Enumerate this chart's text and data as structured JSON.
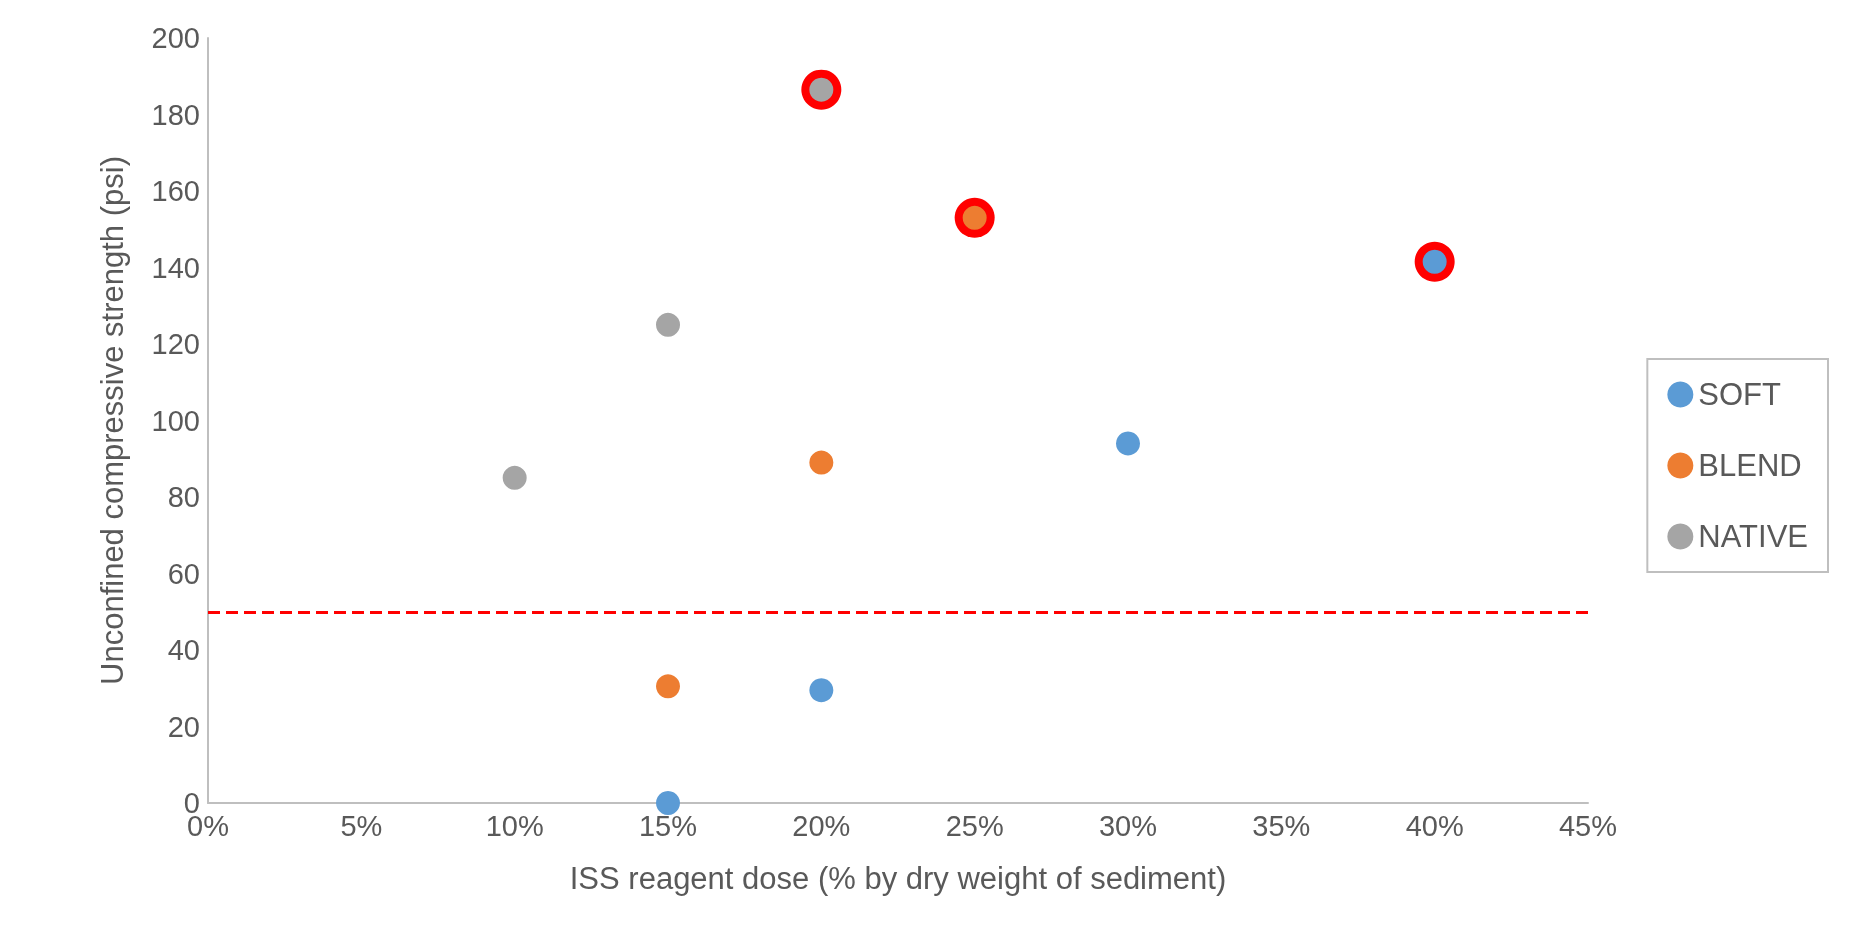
{
  "chart_data": {
    "type": "scatter",
    "xlabel": "ISS reagent dose (% by dry weight of sediment)",
    "ylabel": "Unconfined compressive strength (psi)",
    "xlim": [
      0,
      45
    ],
    "xticks": [
      {
        "value": 0,
        "label": "0%"
      },
      {
        "value": 5,
        "label": "5%"
      },
      {
        "value": 10,
        "label": "10%"
      },
      {
        "value": 15,
        "label": "15%"
      },
      {
        "value": 20,
        "label": "20%"
      },
      {
        "value": 25,
        "label": "25%"
      },
      {
        "value": 30,
        "label": "30%"
      },
      {
        "value": 35,
        "label": "35%"
      },
      {
        "value": 40,
        "label": "40%"
      },
      {
        "value": 45,
        "label": "45%"
      }
    ],
    "ylim": [
      0,
      200
    ],
    "yticks": [
      0,
      20,
      40,
      60,
      80,
      100,
      120,
      140,
      160,
      180,
      200
    ],
    "grid": false,
    "legend": "right",
    "marker": "circle",
    "ref_lines": [
      {
        "axis": "y",
        "value": 50,
        "color": "#ff0000",
        "line_style": "dashed"
      }
    ],
    "series": [
      {
        "color": "#ff0000",
        "x": [
          20,
          25,
          40
        ],
        "values": [
          186.5,
          153,
          141.5
        ]
      },
      {
        "name": "SOFT",
        "color": "#5b9bd5",
        "x": [
          15,
          20,
          30,
          40
        ],
        "values": [
          0,
          29.5,
          94,
          141.5
        ]
      },
      {
        "name": "BLEND",
        "color": "#ed7d31",
        "x": [
          15,
          20,
          25
        ],
        "values": [
          30.5,
          89,
          153
        ]
      },
      {
        "name": "NATIVE",
        "color": "#a5a5a5",
        "x": [
          10,
          15,
          20
        ],
        "values": [
          85,
          125,
          186.5
        ]
      }
    ]
  }
}
